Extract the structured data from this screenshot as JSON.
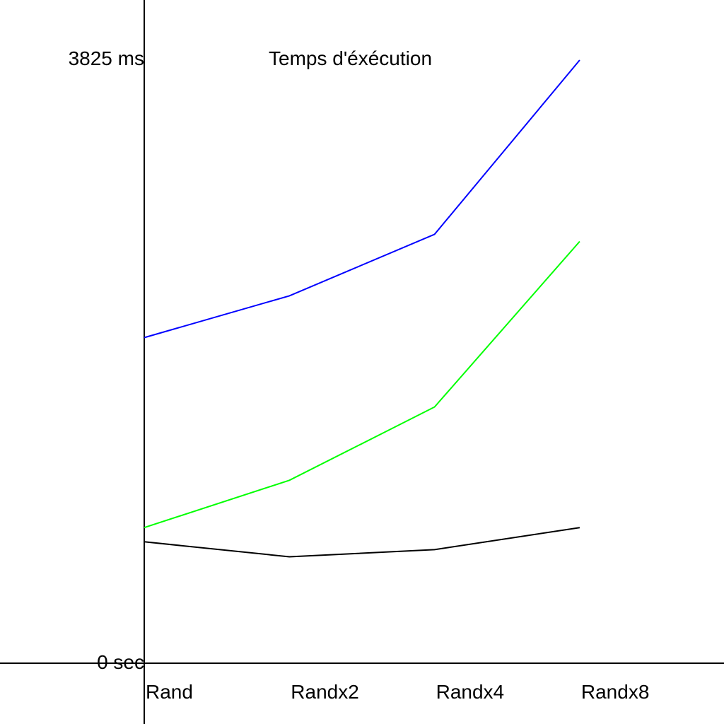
{
  "chart_data": {
    "type": "line",
    "title": "Temps d'éxécution",
    "categories": [
      "Rand",
      "Randx2",
      "Randx4",
      "Randx8"
    ],
    "y_top_label": "3825 ms",
    "y_bottom_label": "0 sec",
    "ylim": [
      0,
      3825
    ],
    "grid": false,
    "legend": "none",
    "series": [
      {
        "color": "#0000ff",
        "values": [
          2065,
          2330,
          2720,
          3825
        ]
      },
      {
        "color": "#00ff00",
        "values": [
          860,
          1160,
          1625,
          2675
        ]
      },
      {
        "color": "#000000",
        "values": [
          770,
          675,
          720,
          860
        ]
      }
    ]
  }
}
